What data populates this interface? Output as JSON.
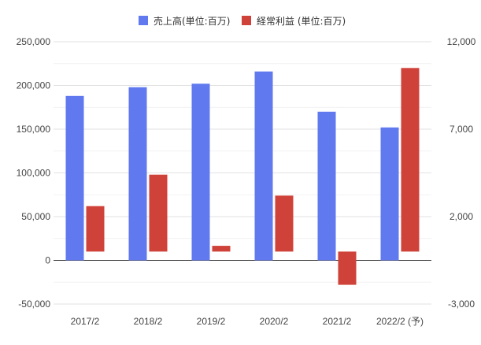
{
  "chart_data": {
    "type": "bar",
    "categories": [
      "2017/2",
      "2018/2",
      "2019/2",
      "2020/2",
      "2021/2",
      "2022/2 (予)"
    ],
    "series": [
      {
        "name": "売上高(単位:百万)",
        "axis": "left",
        "color": "#6079ef",
        "values": [
          188000,
          198000,
          202000,
          216000,
          170000,
          152000
        ]
      },
      {
        "name": "経常利益 (単位:百万)",
        "axis": "right",
        "color": "#cf4239",
        "values": [
          2600,
          4400,
          330,
          3200,
          -1900,
          10500
        ]
      }
    ],
    "left_axis": {
      "ylim": [
        -50000,
        250000
      ],
      "ticks": [
        -50000,
        0,
        50000,
        100000,
        150000,
        200000,
        250000
      ],
      "tick_labels": [
        "-50,000",
        "0",
        "50,000",
        "100,000",
        "150,000",
        "200,000",
        "250,000"
      ]
    },
    "right_axis": {
      "ylim": [
        -3000,
        12000
      ],
      "ticks": [
        -3000,
        2000,
        7000,
        12000
      ],
      "tick_labels": [
        "-3,000",
        "2,000",
        "7,000",
        "12,000"
      ]
    },
    "grid": true,
    "legend_position": "top-center"
  }
}
